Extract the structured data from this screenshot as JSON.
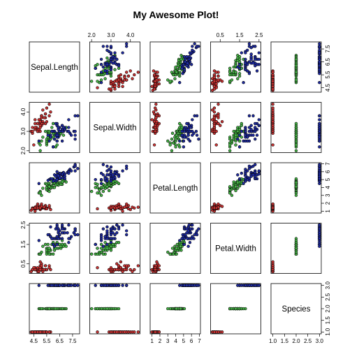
{
  "chart_data": {
    "type": "scatter",
    "layout": "pairs-matrix",
    "title": "My Awesome Plot!",
    "variables": [
      "Sepal.Length",
      "Sepal.Width",
      "Petal.Length",
      "Petal.Width",
      "Species"
    ],
    "ranges": {
      "Sepal.Length": [
        4.3,
        7.9
      ],
      "Sepal.Width": [
        2.0,
        4.4
      ],
      "Petal.Length": [
        1.0,
        6.9
      ],
      "Petal.Width": [
        0.1,
        2.5
      ],
      "Species": [
        1,
        3
      ]
    },
    "ticks": {
      "Sepal.Length": [
        4.5,
        5.5,
        6.5,
        7.5
      ],
      "Sepal.Width": [
        2.0,
        3.0,
        4.0
      ],
      "Petal.Length": [
        1,
        2,
        3,
        4,
        5,
        6,
        7
      ],
      "Petal.Width": [
        0.5,
        1.5,
        2.5
      ],
      "Species": [
        1.0,
        1.5,
        2.0,
        2.5,
        3.0
      ]
    },
    "tick_labels": {
      "Sepal.Length": [
        "4.5",
        "5.5",
        "6.5",
        "7.5"
      ],
      "Sepal.Width": [
        "2.0",
        "3.0",
        "4.0"
      ],
      "Petal.Length": [
        "1",
        "2",
        "3",
        "4",
        "5",
        "6",
        "7"
      ],
      "Petal.Width": [
        "0.5",
        "1.5",
        "2.5"
      ],
      "Species": [
        "1.0",
        "1.5",
        "2.0",
        "2.5",
        "3.0"
      ]
    },
    "tick_labels_left": {
      "Sepal.Width": [
        "2.0",
        "3.0",
        "4.0"
      ],
      "Petal.Width": [
        "0.5",
        "1.5",
        "2.5"
      ]
    },
    "group_colors": [
      "#c83232",
      "#46b446",
      "#1e2aa0"
    ],
    "point_shape": "filled-circle",
    "series": [
      {
        "group": 1,
        "rows": [
          [
            5.1,
            3.5,
            1.4,
            0.2
          ],
          [
            4.9,
            3.0,
            1.4,
            0.2
          ],
          [
            4.7,
            3.2,
            1.3,
            0.2
          ],
          [
            4.6,
            3.1,
            1.5,
            0.2
          ],
          [
            5.0,
            3.6,
            1.4,
            0.2
          ],
          [
            5.4,
            3.9,
            1.7,
            0.4
          ],
          [
            4.6,
            3.4,
            1.4,
            0.3
          ],
          [
            5.0,
            3.4,
            1.5,
            0.2
          ],
          [
            4.4,
            2.9,
            1.4,
            0.2
          ],
          [
            4.9,
            3.1,
            1.5,
            0.1
          ],
          [
            5.4,
            3.7,
            1.5,
            0.2
          ],
          [
            4.8,
            3.4,
            1.6,
            0.2
          ],
          [
            4.8,
            3.0,
            1.4,
            0.1
          ],
          [
            4.3,
            3.0,
            1.1,
            0.1
          ],
          [
            5.8,
            4.0,
            1.2,
            0.2
          ],
          [
            5.7,
            4.4,
            1.5,
            0.4
          ],
          [
            5.4,
            3.9,
            1.3,
            0.4
          ],
          [
            5.1,
            3.5,
            1.4,
            0.3
          ],
          [
            5.7,
            3.8,
            1.7,
            0.3
          ],
          [
            5.1,
            3.8,
            1.5,
            0.3
          ],
          [
            5.4,
            3.4,
            1.7,
            0.2
          ],
          [
            5.1,
            3.7,
            1.5,
            0.4
          ],
          [
            4.6,
            3.6,
            1.0,
            0.2
          ],
          [
            5.1,
            3.3,
            1.7,
            0.5
          ],
          [
            4.8,
            3.4,
            1.9,
            0.2
          ],
          [
            5.0,
            3.0,
            1.6,
            0.2
          ],
          [
            5.0,
            3.4,
            1.6,
            0.4
          ],
          [
            5.2,
            3.5,
            1.5,
            0.2
          ],
          [
            5.2,
            3.4,
            1.4,
            0.2
          ],
          [
            4.7,
            3.2,
            1.6,
            0.2
          ],
          [
            4.8,
            3.1,
            1.6,
            0.2
          ],
          [
            5.4,
            3.4,
            1.5,
            0.4
          ],
          [
            5.2,
            4.1,
            1.5,
            0.1
          ],
          [
            5.5,
            4.2,
            1.4,
            0.2
          ],
          [
            4.9,
            3.1,
            1.5,
            0.2
          ],
          [
            5.0,
            3.2,
            1.2,
            0.2
          ],
          [
            5.5,
            3.5,
            1.3,
            0.2
          ],
          [
            4.9,
            3.6,
            1.4,
            0.1
          ],
          [
            4.4,
            3.0,
            1.3,
            0.2
          ],
          [
            5.1,
            3.4,
            1.5,
            0.2
          ],
          [
            5.0,
            3.5,
            1.3,
            0.3
          ],
          [
            4.5,
            2.3,
            1.3,
            0.3
          ],
          [
            4.4,
            3.2,
            1.3,
            0.2
          ],
          [
            5.0,
            3.5,
            1.6,
            0.6
          ],
          [
            5.1,
            3.8,
            1.9,
            0.4
          ],
          [
            4.8,
            3.0,
            1.4,
            0.3
          ],
          [
            5.1,
            3.8,
            1.6,
            0.2
          ],
          [
            4.6,
            3.2,
            1.4,
            0.2
          ],
          [
            5.3,
            3.7,
            1.5,
            0.2
          ],
          [
            5.0,
            3.3,
            1.4,
            0.2
          ]
        ]
      },
      {
        "group": 2,
        "rows": [
          [
            7.0,
            3.2,
            4.7,
            1.4
          ],
          [
            6.4,
            3.2,
            4.5,
            1.5
          ],
          [
            6.9,
            3.1,
            4.9,
            1.5
          ],
          [
            5.5,
            2.3,
            4.0,
            1.3
          ],
          [
            6.5,
            2.8,
            4.6,
            1.5
          ],
          [
            5.7,
            2.8,
            4.5,
            1.3
          ],
          [
            6.3,
            3.3,
            4.7,
            1.6
          ],
          [
            4.9,
            2.4,
            3.3,
            1.0
          ],
          [
            6.6,
            2.9,
            4.6,
            1.3
          ],
          [
            5.2,
            2.7,
            3.9,
            1.4
          ],
          [
            5.0,
            2.0,
            3.5,
            1.0
          ],
          [
            5.9,
            3.0,
            4.2,
            1.5
          ],
          [
            6.0,
            2.2,
            4.0,
            1.0
          ],
          [
            6.1,
            2.9,
            4.7,
            1.4
          ],
          [
            5.6,
            2.9,
            3.6,
            1.3
          ],
          [
            6.7,
            3.1,
            4.4,
            1.4
          ],
          [
            5.6,
            3.0,
            4.5,
            1.5
          ],
          [
            5.8,
            2.7,
            4.1,
            1.0
          ],
          [
            6.2,
            2.2,
            4.5,
            1.5
          ],
          [
            5.6,
            2.5,
            3.9,
            1.1
          ],
          [
            5.9,
            3.2,
            4.8,
            1.8
          ],
          [
            6.1,
            2.8,
            4.0,
            1.3
          ],
          [
            6.3,
            2.5,
            4.9,
            1.5
          ],
          [
            6.1,
            2.8,
            4.7,
            1.2
          ],
          [
            6.4,
            2.9,
            4.3,
            1.3
          ],
          [
            6.6,
            3.0,
            4.4,
            1.4
          ],
          [
            6.8,
            2.8,
            4.8,
            1.4
          ],
          [
            6.7,
            3.0,
            5.0,
            1.7
          ],
          [
            6.0,
            2.9,
            4.5,
            1.5
          ],
          [
            5.7,
            2.6,
            3.5,
            1.0
          ],
          [
            5.5,
            2.4,
            3.8,
            1.1
          ],
          [
            5.5,
            2.4,
            3.7,
            1.0
          ],
          [
            5.8,
            2.7,
            3.9,
            1.2
          ],
          [
            6.0,
            2.7,
            5.1,
            1.6
          ],
          [
            5.4,
            3.0,
            4.5,
            1.5
          ],
          [
            6.0,
            3.4,
            4.5,
            1.6
          ],
          [
            6.7,
            3.1,
            4.7,
            1.5
          ],
          [
            6.3,
            2.3,
            4.4,
            1.3
          ],
          [
            5.6,
            3.0,
            4.1,
            1.3
          ],
          [
            5.5,
            2.5,
            4.0,
            1.3
          ],
          [
            5.5,
            2.6,
            4.4,
            1.2
          ],
          [
            6.1,
            3.0,
            4.6,
            1.4
          ],
          [
            5.8,
            2.6,
            4.0,
            1.2
          ],
          [
            5.0,
            2.3,
            3.3,
            1.0
          ],
          [
            5.6,
            2.7,
            4.2,
            1.3
          ],
          [
            5.7,
            3.0,
            4.2,
            1.2
          ],
          [
            5.7,
            2.9,
            4.2,
            1.3
          ],
          [
            6.2,
            2.9,
            4.3,
            1.3
          ],
          [
            5.1,
            2.5,
            3.0,
            1.1
          ],
          [
            5.7,
            2.8,
            4.1,
            1.3
          ]
        ]
      },
      {
        "group": 3,
        "rows": [
          [
            6.3,
            3.3,
            6.0,
            2.5
          ],
          [
            5.8,
            2.7,
            5.1,
            1.9
          ],
          [
            7.1,
            3.0,
            5.9,
            2.1
          ],
          [
            6.3,
            2.9,
            5.6,
            1.8
          ],
          [
            6.5,
            3.0,
            5.8,
            2.2
          ],
          [
            7.6,
            3.0,
            6.6,
            2.1
          ],
          [
            4.9,
            2.5,
            4.5,
            1.7
          ],
          [
            7.3,
            2.9,
            6.3,
            1.8
          ],
          [
            6.7,
            2.5,
            5.8,
            1.8
          ],
          [
            7.2,
            3.6,
            6.1,
            2.5
          ],
          [
            6.5,
            3.2,
            5.1,
            2.0
          ],
          [
            6.4,
            2.7,
            5.3,
            1.9
          ],
          [
            6.8,
            3.0,
            5.5,
            2.1
          ],
          [
            5.7,
            2.5,
            5.0,
            2.0
          ],
          [
            5.8,
            2.8,
            5.1,
            2.4
          ],
          [
            6.4,
            3.2,
            5.3,
            2.3
          ],
          [
            6.5,
            3.0,
            5.5,
            1.8
          ],
          [
            7.7,
            3.8,
            6.7,
            2.2
          ],
          [
            7.7,
            2.6,
            6.9,
            2.3
          ],
          [
            6.0,
            2.2,
            5.0,
            1.5
          ],
          [
            6.9,
            3.2,
            5.7,
            2.3
          ],
          [
            5.6,
            2.8,
            4.9,
            2.0
          ],
          [
            7.7,
            2.8,
            6.7,
            2.0
          ],
          [
            6.3,
            2.7,
            4.9,
            1.8
          ],
          [
            6.7,
            3.3,
            5.7,
            2.1
          ],
          [
            7.2,
            3.2,
            6.0,
            1.8
          ],
          [
            6.2,
            2.8,
            4.8,
            1.8
          ],
          [
            6.1,
            3.0,
            4.9,
            1.8
          ],
          [
            6.4,
            2.8,
            5.6,
            2.1
          ],
          [
            7.2,
            3.0,
            5.8,
            1.6
          ],
          [
            7.4,
            2.8,
            6.1,
            1.9
          ],
          [
            7.9,
            3.8,
            6.4,
            2.0
          ],
          [
            6.4,
            2.8,
            5.6,
            2.2
          ],
          [
            6.3,
            2.8,
            5.1,
            1.5
          ],
          [
            6.1,
            2.6,
            5.6,
            1.4
          ],
          [
            7.7,
            3.0,
            6.1,
            2.3
          ],
          [
            6.3,
            3.4,
            5.6,
            2.4
          ],
          [
            6.4,
            3.1,
            5.5,
            1.8
          ],
          [
            6.0,
            3.0,
            4.8,
            1.8
          ],
          [
            6.9,
            3.1,
            5.4,
            2.1
          ],
          [
            6.7,
            3.1,
            5.6,
            2.4
          ],
          [
            6.9,
            3.1,
            5.1,
            2.3
          ],
          [
            5.8,
            2.7,
            5.1,
            1.9
          ],
          [
            6.8,
            3.2,
            5.9,
            2.3
          ],
          [
            6.7,
            3.3,
            5.7,
            2.5
          ],
          [
            6.7,
            3.0,
            5.2,
            2.3
          ],
          [
            6.3,
            2.5,
            5.0,
            1.9
          ],
          [
            6.5,
            3.0,
            5.2,
            2.0
          ],
          [
            6.2,
            3.4,
            5.4,
            2.3
          ],
          [
            5.9,
            3.0,
            5.1,
            1.8
          ]
        ]
      }
    ]
  }
}
